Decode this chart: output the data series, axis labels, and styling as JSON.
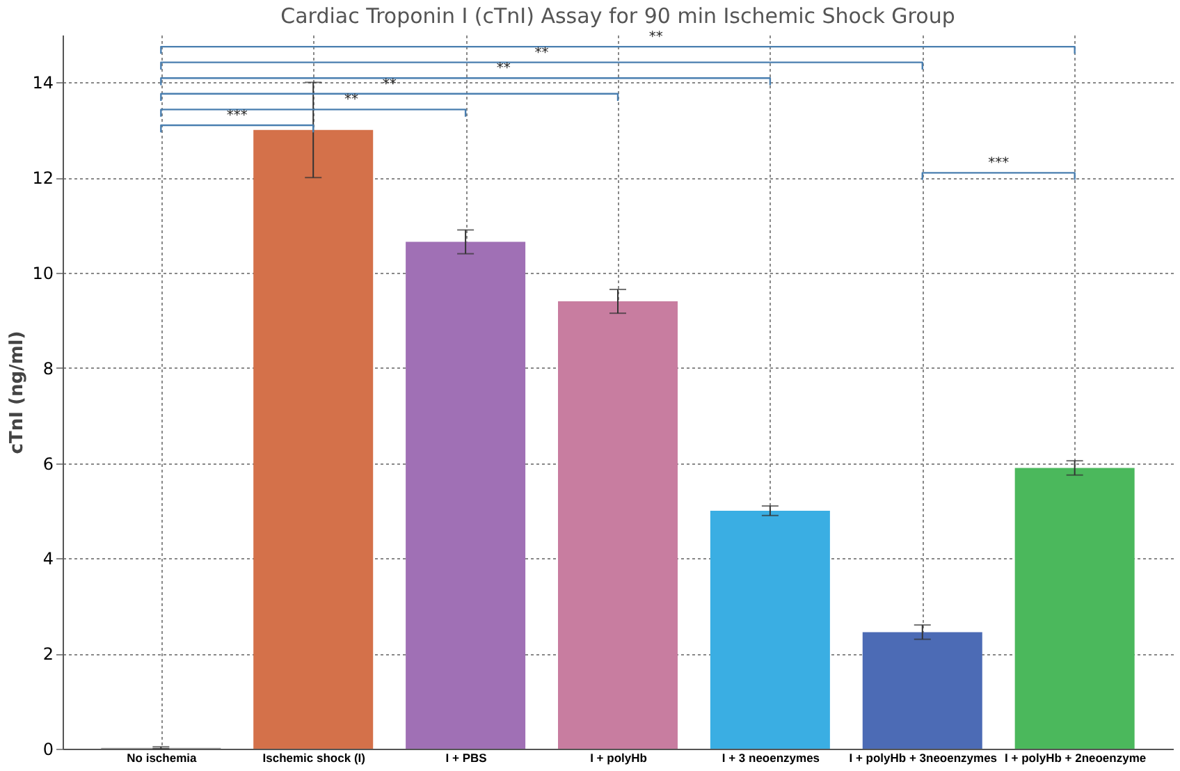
{
  "chart_data": {
    "type": "bar",
    "title": "Cardiac Troponin I (cTnI) Assay for 90 min Ischemic Shock Group",
    "ylabel": "cTnI (ng/ml)",
    "categories": [
      "No ischemia",
      "Ischemic shock (I)",
      "I + PBS",
      "I + polyHb",
      "I + 3 neoenzymes",
      "I + polyHb + 3neoenzymes",
      "I + polyHb + 2neoenzyme"
    ],
    "values": [
      0.02,
      13.0,
      10.65,
      9.4,
      5.0,
      2.45,
      5.9
    ],
    "errors": [
      0.02,
      1.0,
      0.25,
      0.25,
      0.1,
      0.15,
      0.15
    ],
    "colors": [
      "#9e9e9e",
      "#d4714a",
      "#a070b5",
      "#c87da0",
      "#3aaee3",
      "#4c6bb5",
      "#4bb85c"
    ],
    "ylim": [
      0,
      15
    ],
    "yticks": [
      0,
      2,
      4,
      6,
      8,
      10,
      12,
      14
    ],
    "grid": true,
    "annotations": [
      "***",
      "**",
      "**",
      "**",
      "**",
      "**",
      "***"
    ]
  }
}
